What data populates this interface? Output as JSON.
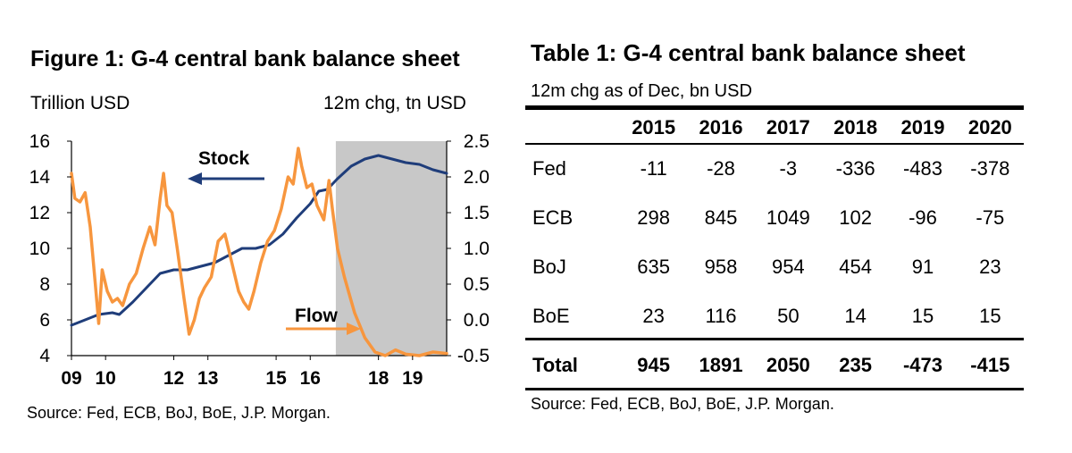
{
  "figure": {
    "title": "Figure 1: G-4 central bank balance sheet",
    "left_unit": "Trillion USD",
    "right_unit": "12m chg, tn USD",
    "source": "Source: Fed, ECB, BoJ, BoE, J.P. Morgan."
  },
  "chart_data": {
    "type": "line",
    "x_tick_labels": [
      "09",
      "10",
      "12",
      "13",
      "15",
      "16",
      "18",
      "19"
    ],
    "x_tick_years": [
      2009.0,
      2010.0,
      2012.0,
      2013.0,
      2015.0,
      2016.0,
      2018.0,
      2019.0
    ],
    "xlim": [
      2009.0,
      2020.0
    ],
    "y_left": {
      "ylim": [
        4,
        16
      ],
      "ticks": [
        "4",
        "6",
        "8",
        "10",
        "12",
        "14",
        "16"
      ]
    },
    "y_right": {
      "ylim": [
        -0.5,
        2.5
      ],
      "ticks": [
        "-0.5",
        "0.0",
        "0.5",
        "1.0",
        "1.5",
        "2.0",
        "2.5"
      ]
    },
    "shaded_region": [
      2016.75,
      2020.0
    ],
    "shade_color": "#c8c8c8",
    "series": [
      {
        "name": "Stock",
        "axis": "left",
        "color": "#1f3d7a",
        "points": [
          [
            2009.0,
            5.7
          ],
          [
            2009.4,
            6.0
          ],
          [
            2009.8,
            6.3
          ],
          [
            2010.2,
            6.4
          ],
          [
            2010.4,
            6.3
          ],
          [
            2010.8,
            7.0
          ],
          [
            2011.2,
            7.8
          ],
          [
            2011.6,
            8.6
          ],
          [
            2012.0,
            8.8
          ],
          [
            2012.4,
            8.8
          ],
          [
            2012.8,
            9.0
          ],
          [
            2013.2,
            9.2
          ],
          [
            2013.6,
            9.6
          ],
          [
            2014.0,
            10.0
          ],
          [
            2014.4,
            10.0
          ],
          [
            2014.8,
            10.2
          ],
          [
            2015.2,
            10.8
          ],
          [
            2015.6,
            11.7
          ],
          [
            2016.0,
            12.5
          ],
          [
            2016.25,
            13.2
          ],
          [
            2016.5,
            13.3
          ],
          [
            2016.8,
            13.9
          ],
          [
            2017.2,
            14.6
          ],
          [
            2017.6,
            15.0
          ],
          [
            2018.0,
            15.2
          ],
          [
            2018.4,
            15.0
          ],
          [
            2018.8,
            14.8
          ],
          [
            2019.2,
            14.7
          ],
          [
            2019.6,
            14.4
          ],
          [
            2020.0,
            14.2
          ]
        ]
      },
      {
        "name": "Flow",
        "axis": "right",
        "color": "#f7963e",
        "points": [
          [
            2009.0,
            2.05
          ],
          [
            2009.1,
            1.7
          ],
          [
            2009.25,
            1.65
          ],
          [
            2009.4,
            1.78
          ],
          [
            2009.55,
            1.3
          ],
          [
            2009.7,
            0.5
          ],
          [
            2009.8,
            -0.05
          ],
          [
            2009.9,
            0.7
          ],
          [
            2010.05,
            0.4
          ],
          [
            2010.2,
            0.25
          ],
          [
            2010.35,
            0.3
          ],
          [
            2010.5,
            0.2
          ],
          [
            2010.7,
            0.5
          ],
          [
            2010.9,
            0.65
          ],
          [
            2011.1,
            1.0
          ],
          [
            2011.3,
            1.3
          ],
          [
            2011.45,
            1.05
          ],
          [
            2011.6,
            1.7
          ],
          [
            2011.7,
            2.05
          ],
          [
            2011.8,
            1.6
          ],
          [
            2011.95,
            1.5
          ],
          [
            2012.1,
            1.0
          ],
          [
            2012.3,
            0.3
          ],
          [
            2012.45,
            -0.2
          ],
          [
            2012.6,
            0.0
          ],
          [
            2012.75,
            0.3
          ],
          [
            2012.9,
            0.45
          ],
          [
            2013.1,
            0.6
          ],
          [
            2013.3,
            1.1
          ],
          [
            2013.5,
            1.2
          ],
          [
            2013.7,
            0.8
          ],
          [
            2013.9,
            0.4
          ],
          [
            2014.05,
            0.25
          ],
          [
            2014.2,
            0.15
          ],
          [
            2014.35,
            0.4
          ],
          [
            2014.55,
            0.8
          ],
          [
            2014.75,
            1.1
          ],
          [
            2014.95,
            1.25
          ],
          [
            2015.15,
            1.55
          ],
          [
            2015.35,
            2.0
          ],
          [
            2015.5,
            1.9
          ],
          [
            2015.65,
            2.4
          ],
          [
            2015.75,
            2.15
          ],
          [
            2015.9,
            1.85
          ],
          [
            2016.05,
            1.9
          ],
          [
            2016.2,
            1.6
          ],
          [
            2016.4,
            1.4
          ],
          [
            2016.55,
            1.95
          ],
          [
            2016.65,
            1.55
          ],
          [
            2016.8,
            1.0
          ],
          [
            2017.0,
            0.6
          ],
          [
            2017.3,
            0.1
          ],
          [
            2017.6,
            -0.25
          ],
          [
            2017.9,
            -0.45
          ],
          [
            2018.2,
            -0.5
          ],
          [
            2018.5,
            -0.42
          ],
          [
            2018.8,
            -0.48
          ],
          [
            2019.2,
            -0.5
          ],
          [
            2019.6,
            -0.45
          ],
          [
            2020.0,
            -0.47
          ]
        ]
      }
    ],
    "annotations": [
      {
        "text": "Stock",
        "series": "Stock",
        "arrow": "left"
      },
      {
        "text": "Flow",
        "series": "Flow",
        "arrow": "right"
      }
    ]
  },
  "table": {
    "title": "Table 1: G-4 central bank balance sheet",
    "subtitle": "12m chg as of Dec, bn USD",
    "columns": [
      "2015",
      "2016",
      "2017",
      "2018",
      "2019",
      "2020"
    ],
    "rows": [
      {
        "label": "Fed",
        "values": [
          "-11",
          "-28",
          "-3",
          "-336",
          "-483",
          "-378"
        ]
      },
      {
        "label": "ECB",
        "values": [
          "298",
          "845",
          "1049",
          "102",
          "-96",
          "-75"
        ]
      },
      {
        "label": "BoJ",
        "values": [
          "635",
          "958",
          "954",
          "454",
          "91",
          "23"
        ]
      },
      {
        "label": "BoE",
        "values": [
          "23",
          "116",
          "50",
          "14",
          "15",
          "15"
        ]
      }
    ],
    "total": {
      "label": "Total",
      "values": [
        "945",
        "1891",
        "2050",
        "235",
        "-473",
        "-415"
      ]
    },
    "source": "Source: Fed, ECB, BoJ, BoE, J.P. Morgan."
  }
}
